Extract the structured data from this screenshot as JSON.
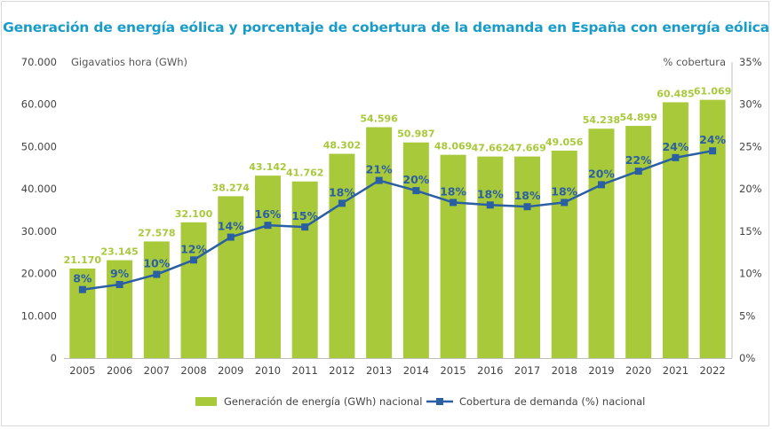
{
  "title": "Generación de energía eólica y porcentaje de cobertura de la demanda en España con energía eólica",
  "colors": {
    "bar": "#a8c93a",
    "line": "#2b5fa3",
    "bar_label": "#a8c93a",
    "line_label": "#2b5fa3",
    "title": "#1a9cc9",
    "axis_text": "#444444",
    "grid": "#d9d9d9"
  },
  "chart_data": {
    "type": "bar",
    "title": "Generación de energía eólica y porcentaje de cobertura de la demanda en España con energía eólica",
    "ylabel": "Gigavatios hora (GWh)",
    "y2label": "% cobertura",
    "categories": [
      "2005",
      "2006",
      "2007",
      "2008",
      "2009",
      "2010",
      "2011",
      "2012",
      "2013",
      "2014",
      "2015",
      "2016",
      "2017",
      "2018",
      "2019",
      "2020",
      "2021",
      "2022"
    ],
    "ylim": [
      0,
      70000
    ],
    "y2lim": [
      0,
      35
    ],
    "yticks": [
      "0",
      "10.000",
      "20.000",
      "30.000",
      "40.000",
      "50.000",
      "60.000",
      "70.000"
    ],
    "y2ticks": [
      "0%",
      "5%",
      "10%",
      "15%",
      "20%",
      "25%",
      "30%",
      "35%"
    ],
    "grid": false,
    "legend_position": "bottom",
    "series": [
      {
        "name": "Generación de energía (GWh) nacional",
        "type": "bar",
        "axis": "left",
        "values": [
          21170,
          23145,
          27578,
          32100,
          38274,
          43142,
          41762,
          48302,
          54596,
          50987,
          48069,
          47662,
          47669,
          49056,
          54238,
          54899,
          60485,
          61069
        ],
        "labels": [
          "21.170",
          "23.145",
          "27.578",
          "32.100",
          "38.274",
          "43.142",
          "41.762",
          "48.302",
          "54.596",
          "50.987",
          "48.069",
          "47.662",
          "47.669",
          "49.056",
          "54.238",
          "54.899",
          "60.485",
          "61.069"
        ]
      },
      {
        "name": "Cobertura de demanda (%) nacional",
        "type": "line",
        "axis": "right",
        "values": [
          8.1,
          8.7,
          9.9,
          11.6,
          14.3,
          15.7,
          15.5,
          18.3,
          21.0,
          19.8,
          18.4,
          18.1,
          17.9,
          18.4,
          20.5,
          22.1,
          23.7,
          24.5
        ],
        "labels": [
          "8%",
          "9%",
          "10%",
          "12%",
          "14%",
          "16%",
          "15%",
          "18%",
          "21%",
          "20%",
          "18%",
          "18%",
          "18%",
          "18%",
          "20%",
          "22%",
          "24%",
          "24%"
        ]
      }
    ]
  }
}
